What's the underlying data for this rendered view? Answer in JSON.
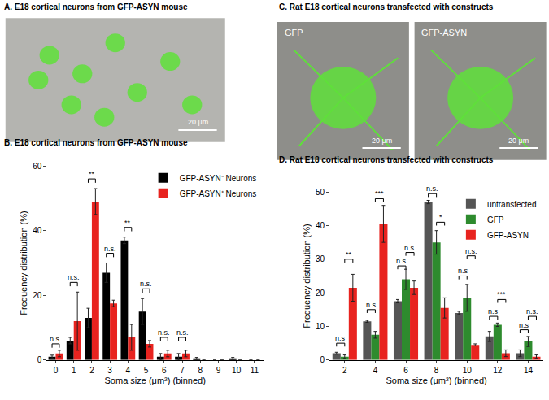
{
  "images": [
    {
      "title": "A. E18 cortical neurons from GFP-ASYN mouse",
      "panels": [
        {
          "scale_bar": "20 μm"
        }
      ]
    },
    {
      "title": "C. Rat E18 cortical neurons transfected with constructs",
      "panels": [
        {
          "label": "GFP",
          "scale_bar": "20 μm"
        },
        {
          "label": "GFP-ASYN",
          "scale_bar": "20 μm"
        }
      ]
    }
  ],
  "chart_data": [
    {
      "type": "bar",
      "title": "B. E18 cortical neurons from GFP-ASYN mouse",
      "x_label": "Soma size (μm²) (binned)",
      "y_label": "Frequency distribution (%)",
      "categories": [
        "0",
        "1",
        "2",
        "3",
        "4",
        "5",
        "6",
        "7",
        "8",
        "9",
        "10",
        "11"
      ],
      "series": [
        {
          "name": "GFP-ASYN⁻ Neurons",
          "color": "#000000",
          "values": [
            1,
            6,
            13,
            27,
            37,
            15,
            1,
            1,
            0.5,
            0,
            0.5,
            0
          ],
          "errors": [
            0.5,
            1,
            3,
            3,
            1,
            4,
            1,
            1,
            0.3,
            0,
            0.3,
            0
          ]
        },
        {
          "name": "GFP-ASYN⁺ Neurons",
          "color": "#e8231f",
          "values": [
            2,
            12,
            49,
            17.5,
            7,
            5,
            2,
            2,
            0,
            0,
            0,
            0
          ],
          "errors": [
            1,
            9,
            4,
            1,
            4,
            1,
            1,
            1,
            0,
            0,
            0,
            0
          ]
        }
      ],
      "ylim": [
        0,
        60
      ],
      "yticks": [
        0,
        20,
        40,
        60
      ],
      "grid": false,
      "legend": "upper right",
      "annotations": [
        {
          "category": "0",
          "y": 5,
          "text": "n.s.",
          "between": [
            "GFP-ASYN⁻ Neurons",
            "GFP-ASYN⁺ Neurons"
          ]
        },
        {
          "category": "1",
          "y": 24,
          "text": "n.s.",
          "between": [
            "GFP-ASYN⁻ Neurons",
            "GFP-ASYN⁺ Neurons"
          ]
        },
        {
          "category": "2",
          "y": 56,
          "text": "**",
          "between": [
            "GFP-ASYN⁻ Neurons",
            "GFP-ASYN⁺ Neurons"
          ]
        },
        {
          "category": "3",
          "y": 33,
          "text": "n.s.",
          "between": [
            "GFP-ASYN⁻ Neurons",
            "GFP-ASYN⁺ Neurons"
          ]
        },
        {
          "category": "4",
          "y": 41,
          "text": "**",
          "between": [
            "GFP-ASYN⁻ Neurons",
            "GFP-ASYN⁺ Neurons"
          ]
        },
        {
          "category": "5",
          "y": 22,
          "text": "n.s.",
          "between": [
            "GFP-ASYN⁻ Neurons",
            "GFP-ASYN⁺ Neurons"
          ]
        },
        {
          "category": "6",
          "y": 7,
          "text": "n.s.",
          "between": [
            "GFP-ASYN⁻ Neurons",
            "GFP-ASYN⁺ Neurons"
          ]
        },
        {
          "category": "7",
          "y": 7,
          "text": "n.s.",
          "between": [
            "GFP-ASYN⁻ Neurons",
            "GFP-ASYN⁺ Neurons"
          ]
        }
      ]
    },
    {
      "type": "bar",
      "title": "D. Rat E18 cortical neurons transfected with constructs",
      "x_label": "Soma size (μm²) (binned)",
      "y_label": "Frequency distribution (%)",
      "categories": [
        "2",
        "4",
        "6",
        "8",
        "10",
        "12",
        "14"
      ],
      "series": [
        {
          "name": "untransfected",
          "color": "#555555",
          "values": [
            2,
            11.5,
            17.5,
            47,
            14,
            7,
            2
          ],
          "errors": [
            0.3,
            0.3,
            0.5,
            0.5,
            0.5,
            1.5,
            1
          ]
        },
        {
          "name": "GFP",
          "color": "#2e8b2e",
          "values": [
            1,
            7.5,
            24,
            35,
            18.5,
            10.5,
            5.5
          ],
          "errors": [
            0.5,
            1,
            3,
            3.5,
            4,
            0.5,
            1.5
          ]
        },
        {
          "name": "GFP-ASYN",
          "color": "#e8231f",
          "values": [
            21.5,
            40.5,
            21.5,
            15.5,
            4.5,
            2,
            1
          ],
          "errors": [
            4,
            5.5,
            2,
            3,
            0.3,
            1,
            0.5
          ]
        }
      ],
      "ylim": [
        0,
        50
      ],
      "yticks": [
        0,
        10,
        20,
        30,
        40,
        50
      ],
      "grid": false,
      "legend": "upper right",
      "annotations": [
        {
          "category": "2",
          "y": 5,
          "text": "n.s",
          "between": [
            "untransfected",
            "GFP"
          ]
        },
        {
          "category": "2",
          "y": 30,
          "text": "**",
          "between": [
            "GFP",
            "GFP-ASYN"
          ]
        },
        {
          "category": "4",
          "y": 15,
          "text": "n.s",
          "between": [
            "untransfected",
            "GFP"
          ]
        },
        {
          "category": "4",
          "y": 48,
          "text": "***",
          "between": [
            "GFP",
            "GFP-ASYN"
          ]
        },
        {
          "category": "6",
          "y": 28,
          "text": "n.s.",
          "between": [
            "untransfected",
            "GFP"
          ]
        },
        {
          "category": "6",
          "y": 32,
          "text": "n.s.",
          "between": [
            "GFP",
            "GFP-ASYN"
          ]
        },
        {
          "category": "8",
          "y": 49.5,
          "text": "n.s.",
          "between": [
            "untransfected",
            "GFP"
          ]
        },
        {
          "category": "8",
          "y": 41,
          "text": "*",
          "between": [
            "GFP",
            "GFP-ASYN"
          ]
        },
        {
          "category": "10",
          "y": 25,
          "text": "n.s",
          "between": [
            "untransfected",
            "GFP"
          ]
        },
        {
          "category": "10",
          "y": 31,
          "text": "n.s.",
          "between": [
            "GFP",
            "GFP-ASYN"
          ]
        },
        {
          "category": "12",
          "y": 13,
          "text": "n.s",
          "between": [
            "untransfected",
            "GFP"
          ]
        },
        {
          "category": "12",
          "y": 18,
          "text": "***",
          "between": [
            "GFP",
            "GFP-ASYN"
          ]
        },
        {
          "category": "14",
          "y": 9,
          "text": "n.s",
          "between": [
            "untransfected",
            "GFP"
          ]
        },
        {
          "category": "14",
          "y": 13,
          "text": "n.s.",
          "between": [
            "GFP",
            "GFP-ASYN"
          ]
        }
      ]
    }
  ]
}
